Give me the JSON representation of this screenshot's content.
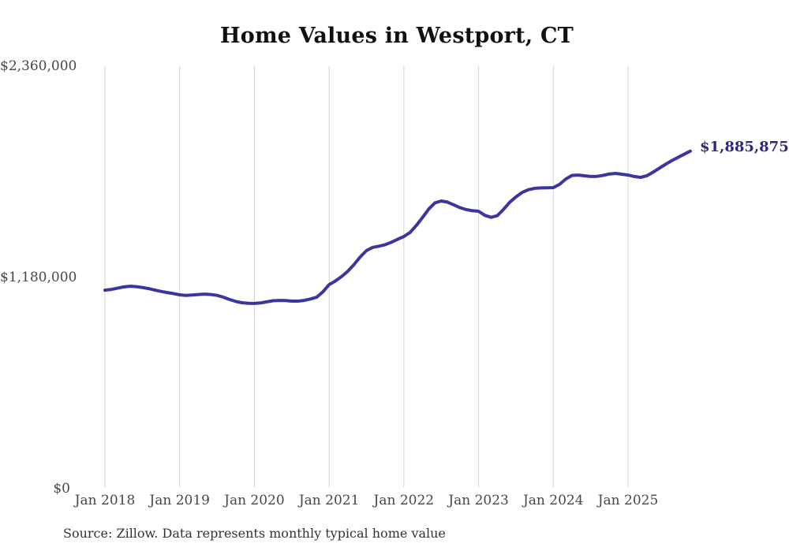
{
  "chart_data": {
    "type": "line",
    "title": "Home Values in Westport, CT",
    "source_note": "Source: Zillow. Data represents monthly typical home value",
    "end_value_label": "$1,885,875",
    "legend": "none",
    "grid": "vertical-only",
    "ylim": [
      0,
      2360000
    ],
    "y_tick_labels": [
      "$0",
      "$1,180,000",
      "$2,360,000"
    ],
    "y_tick_values": [
      0,
      1180000,
      2360000
    ],
    "x_tick_labels": [
      "Jan 2018",
      "Jan 2019",
      "Jan 2020",
      "Jan 2021",
      "Jan 2022",
      "Jan 2023",
      "Jan 2024",
      "Jan 2025"
    ],
    "series": [
      {
        "name": "Monthly typical home value",
        "start": "Jan 2018",
        "frequency": "monthly",
        "end": "Nov 2025",
        "values": [
          1109000,
          1113000,
          1120000,
          1127000,
          1131000,
          1129000,
          1124000,
          1118000,
          1110000,
          1102000,
          1096000,
          1090000,
          1083000,
          1080000,
          1082000,
          1085000,
          1087000,
          1085000,
          1080000,
          1070000,
          1057000,
          1046000,
          1039000,
          1036000,
          1035000,
          1038000,
          1044000,
          1050000,
          1052000,
          1051000,
          1048000,
          1048000,
          1052000,
          1060000,
          1070000,
          1100000,
          1140000,
          1160000,
          1185000,
          1215000,
          1252000,
          1295000,
          1330000,
          1348000,
          1355000,
          1363000,
          1377000,
          1393000,
          1409000,
          1432000,
          1470000,
          1515000,
          1562000,
          1597000,
          1607000,
          1601000,
          1586000,
          1570000,
          1559000,
          1553000,
          1550000,
          1527000,
          1516000,
          1525000,
          1560000,
          1600000,
          1630000,
          1655000,
          1670000,
          1678000,
          1680000,
          1681000,
          1682000,
          1700000,
          1730000,
          1750000,
          1752000,
          1748000,
          1744000,
          1745000,
          1750000,
          1758000,
          1761000,
          1757000,
          1752000,
          1744000,
          1739000,
          1748000,
          1768000,
          1790000,
          1812000,
          1832000,
          1850000,
          1868000,
          1885875
        ]
      }
    ],
    "colors": {
      "line": "#3c35a0",
      "end_label": "#2b2781",
      "gridline": "#d2d2d2",
      "tick_text": "#474747",
      "title_text": "#111111",
      "source_text": "#333333",
      "background": "#ffffff"
    }
  }
}
